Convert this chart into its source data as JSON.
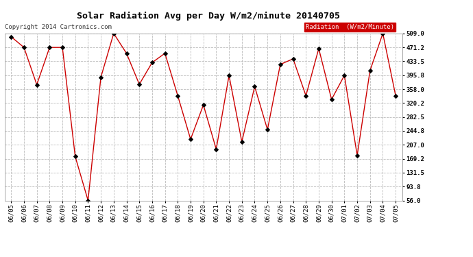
{
  "title": "Solar Radiation Avg per Day W/m2/minute 20140705",
  "copyright": "Copyright 2014 Cartronics.com",
  "legend_label": "Radiation  (W/m2/Minute)",
  "dates": [
    "06/05",
    "06/06",
    "06/07",
    "06/08",
    "06/09",
    "06/10",
    "06/11",
    "06/12",
    "06/13",
    "06/14",
    "06/15",
    "06/16",
    "06/17",
    "06/18",
    "06/19",
    "06/20",
    "06/21",
    "06/22",
    "06/23",
    "06/24",
    "06/25",
    "06/26",
    "06/27",
    "06/28",
    "06/29",
    "06/30",
    "07/01",
    "07/02",
    "07/03",
    "07/04",
    "07/05"
  ],
  "values": [
    500.0,
    471.0,
    370.0,
    471.0,
    471.0,
    175.0,
    56.0,
    390.0,
    509.0,
    455.0,
    371.0,
    430.0,
    455.0,
    340.0,
    222.0,
    315.0,
    195.0,
    395.0,
    215.0,
    365.0,
    248.0,
    425.0,
    440.0,
    340.0,
    468.0,
    330.0,
    395.0,
    178.0,
    408.0,
    509.0,
    340.0
  ],
  "ylim": [
    56.0,
    509.0
  ],
  "yticks": [
    56.0,
    93.8,
    131.5,
    169.2,
    207.0,
    244.8,
    282.5,
    320.2,
    358.0,
    395.8,
    433.5,
    471.2,
    509.0
  ],
  "line_color": "#cc0000",
  "marker_color": "#000000",
  "bg_color": "#ffffff",
  "plot_bg_color": "#ffffff",
  "grid_color": "#bbbbbb",
  "title_fontsize": 9.5,
  "legend_bg_color": "#cc0000",
  "legend_text_color": "#ffffff",
  "tick_fontsize": 6.5,
  "copyright_fontsize": 6.5
}
